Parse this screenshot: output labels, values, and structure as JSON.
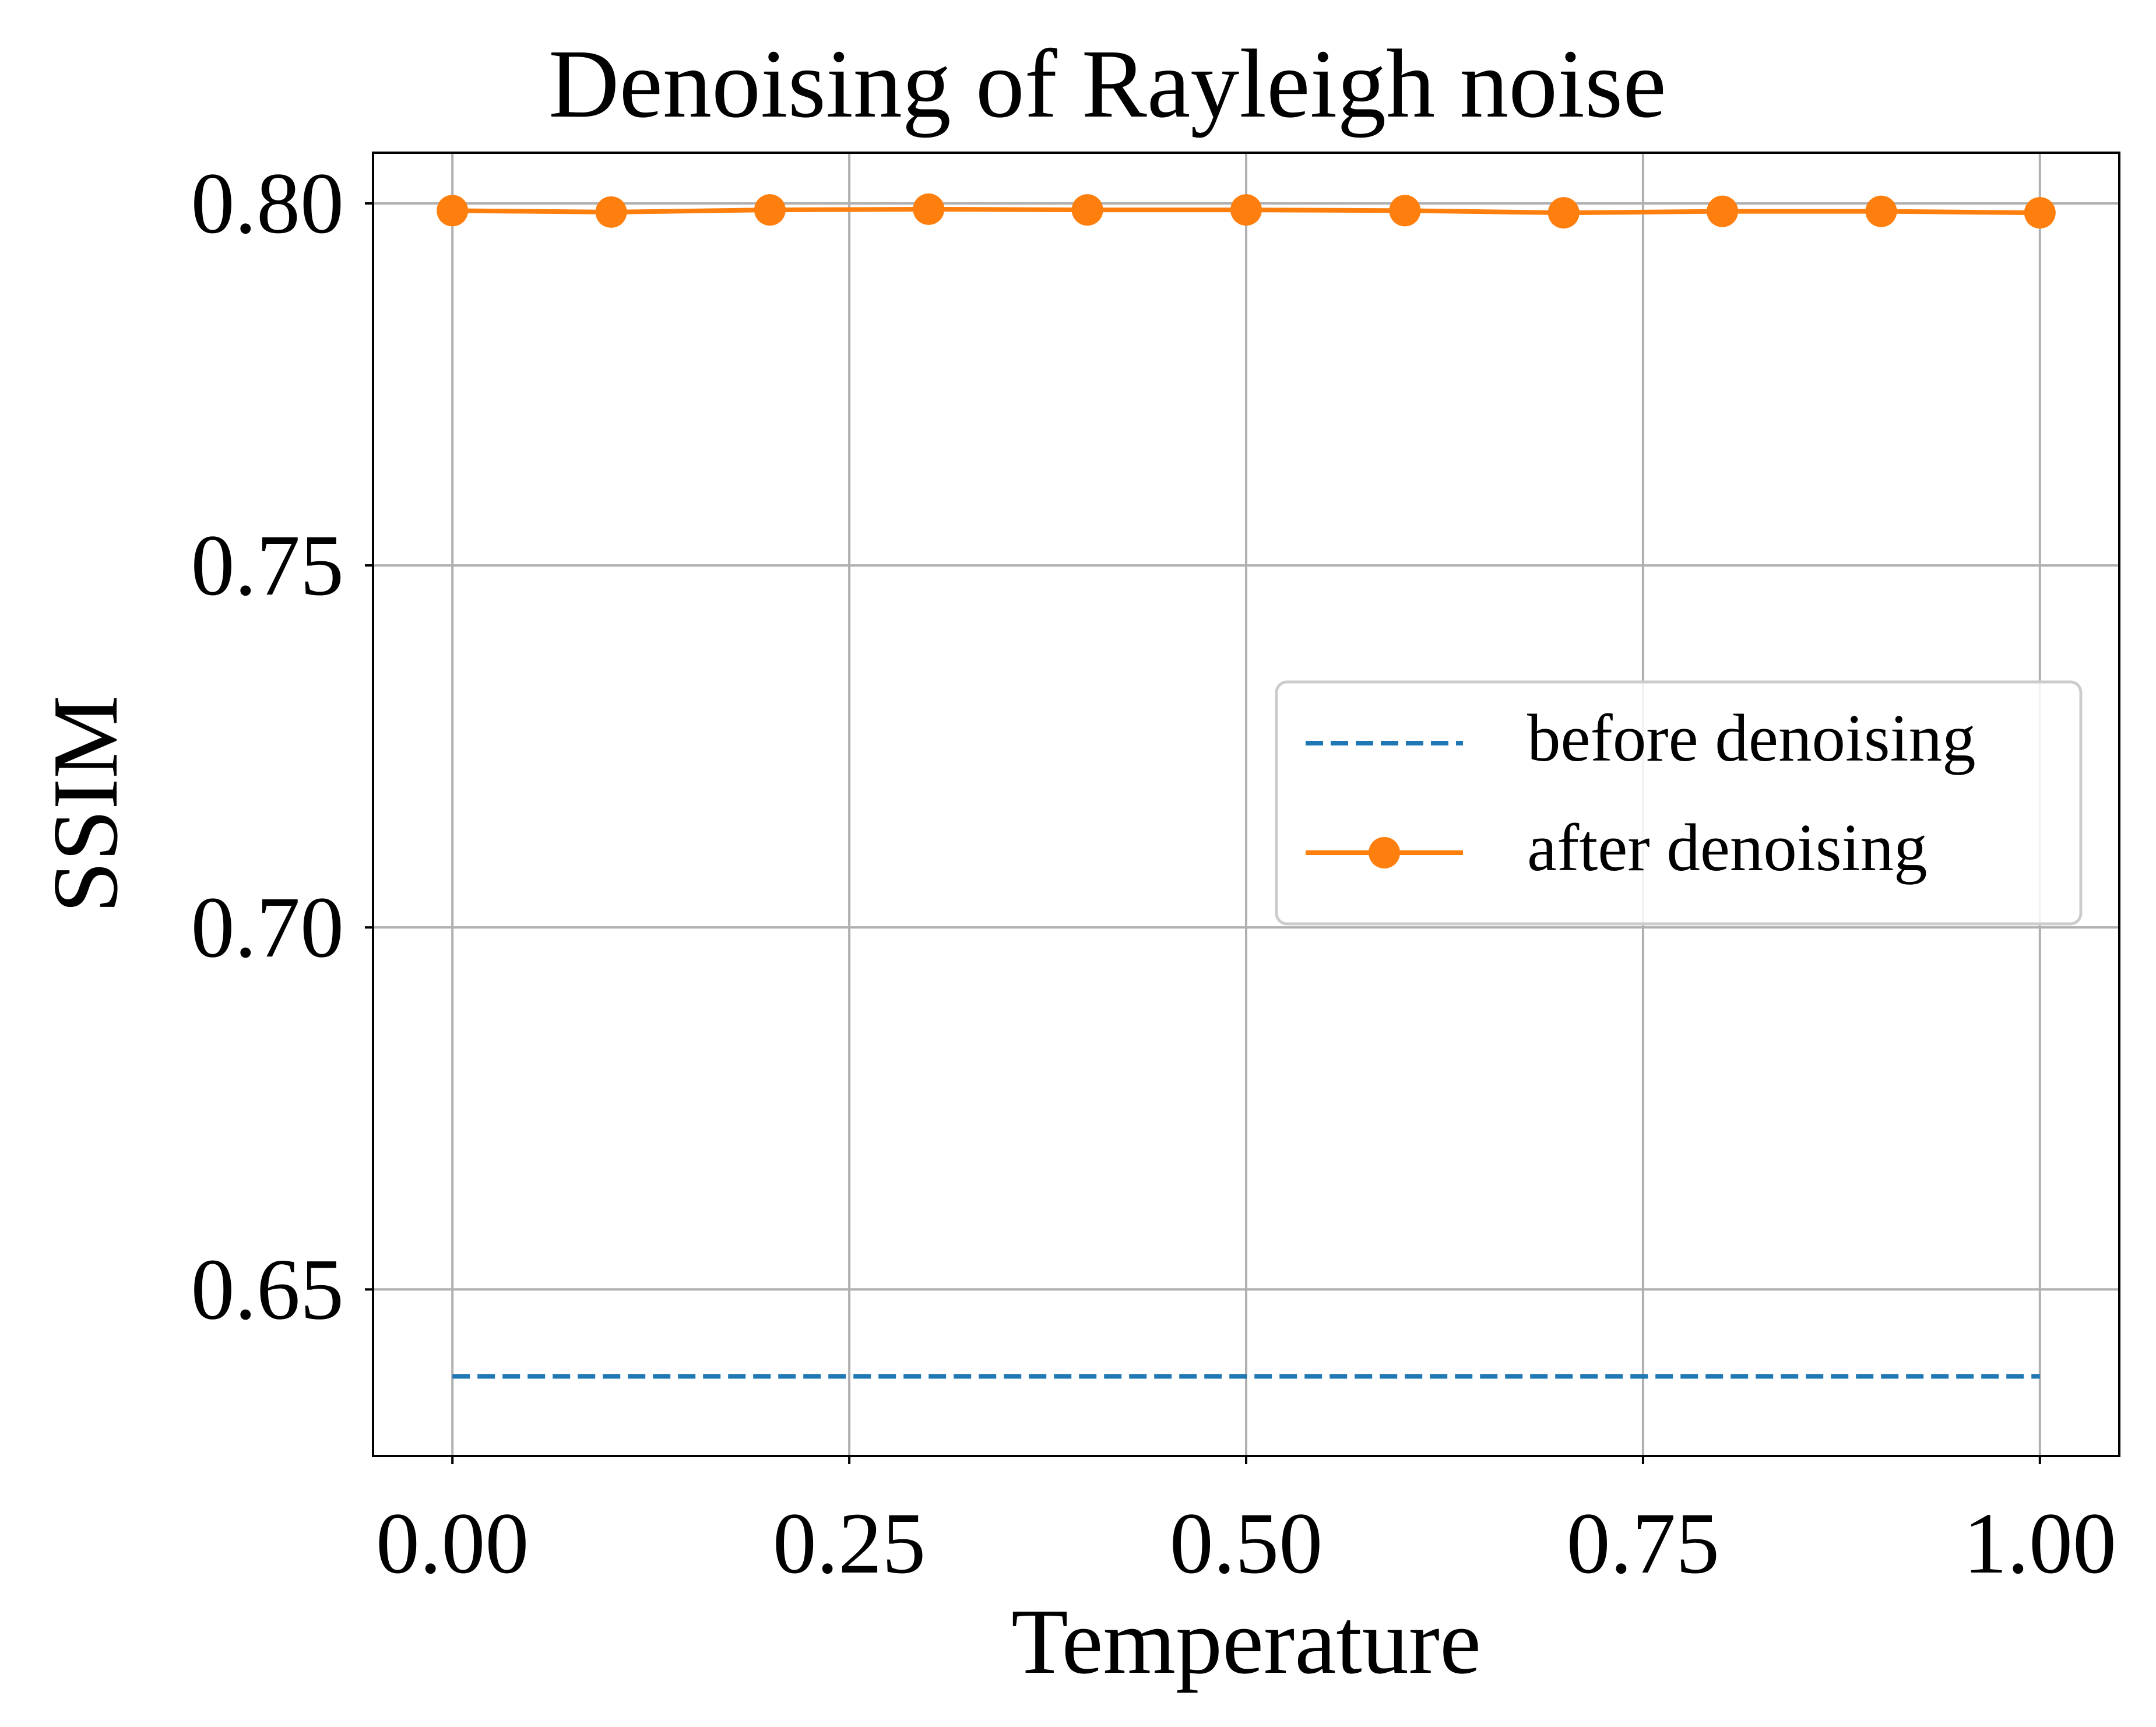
{
  "chart_data": {
    "type": "line",
    "title": "Denoising of Rayleigh noise",
    "xlabel": "Temperature",
    "ylabel": "SSIM",
    "xlim": [
      -0.05,
      1.05
    ],
    "ylim": [
      0.627,
      0.807
    ],
    "xticks": [
      0.0,
      0.25,
      0.5,
      0.75,
      1.0
    ],
    "xtick_labels": [
      "0.00",
      "0.25",
      "0.50",
      "0.75",
      "1.00"
    ],
    "yticks": [
      0.65,
      0.7,
      0.75,
      0.8
    ],
    "ytick_labels": [
      "0.65",
      "0.70",
      "0.75",
      "0.80"
    ],
    "grid": true,
    "legend_position": "center-right",
    "series": [
      {
        "name": "before denoising",
        "color": "#1f77b4",
        "style": "dashed",
        "marker": "none",
        "x": [
          0.0,
          0.1,
          0.2,
          0.3,
          0.4,
          0.5,
          0.6,
          0.7,
          0.8,
          0.9,
          1.0
        ],
        "y": [
          0.638,
          0.638,
          0.638,
          0.638,
          0.638,
          0.638,
          0.638,
          0.638,
          0.638,
          0.638,
          0.638
        ]
      },
      {
        "name": "after denoising",
        "color": "#ff7f0e",
        "style": "solid",
        "marker": "circle",
        "x": [
          0.0,
          0.1,
          0.2,
          0.3,
          0.4,
          0.5,
          0.6,
          0.7,
          0.8,
          0.9,
          1.0
        ],
        "y": [
          0.799,
          0.7988,
          0.7991,
          0.7992,
          0.7991,
          0.7991,
          0.799,
          0.7987,
          0.7989,
          0.7989,
          0.7987
        ]
      }
    ]
  }
}
